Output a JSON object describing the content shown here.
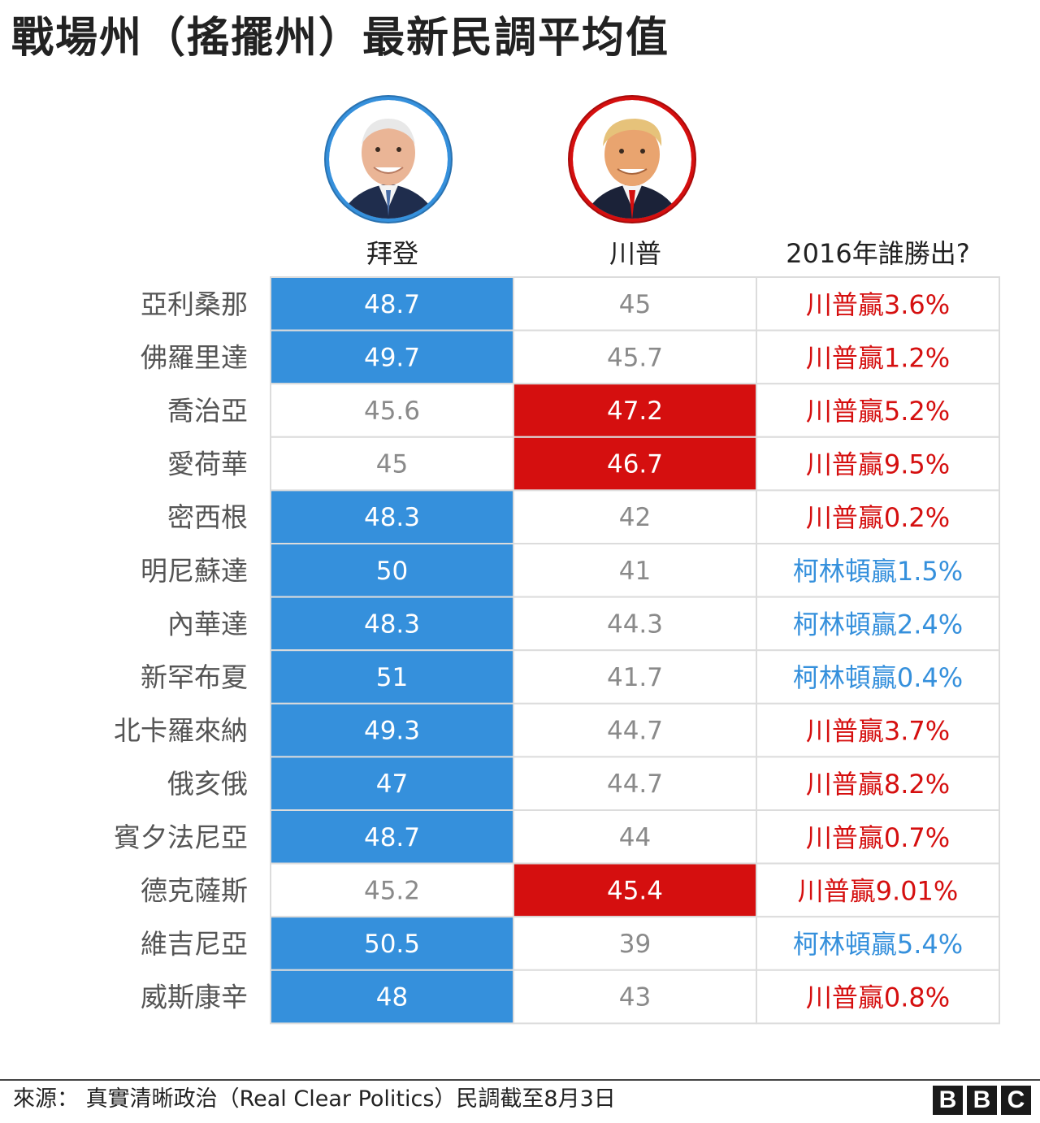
{
  "title": "戰場州（搖擺州）最新民調平均值",
  "columns": {
    "biden": "拜登",
    "trump": "川普",
    "won_2016": "2016年誰勝出?"
  },
  "colors": {
    "biden_blue": "#3590dc",
    "trump_red": "#d50f0f",
    "loser_text": "#8a8a8a",
    "grid": "#dcdcdc"
  },
  "chart_data": {
    "type": "table",
    "title": "戰場州（搖擺州）最新民調平均值",
    "headers": [
      "拜登",
      "川普",
      "2016年誰勝出?"
    ],
    "rows": [
      {
        "state": "亞利桑那",
        "biden": "48.7",
        "trump": "45",
        "lead": "biden",
        "result": "川普贏3.6%",
        "result_winner": "trump"
      },
      {
        "state": "佛羅里達",
        "biden": "49.7",
        "trump": "45.7",
        "lead": "biden",
        "result": "川普贏1.2%",
        "result_winner": "trump"
      },
      {
        "state": "喬治亞",
        "biden": "45.6",
        "trump": "47.2",
        "lead": "trump",
        "result": "川普贏5.2%",
        "result_winner": "trump"
      },
      {
        "state": "愛荷華",
        "biden": "45",
        "trump": "46.7",
        "lead": "trump",
        "result": "川普贏9.5%",
        "result_winner": "trump"
      },
      {
        "state": "密西根",
        "biden": "48.3",
        "trump": "42",
        "lead": "biden",
        "result": "川普贏0.2%",
        "result_winner": "trump"
      },
      {
        "state": "明尼蘇達",
        "biden": "50",
        "trump": "41",
        "lead": "biden",
        "result": "柯林頓贏1.5%",
        "result_winner": "clinton"
      },
      {
        "state": "內華達",
        "biden": "48.3",
        "trump": "44.3",
        "lead": "biden",
        "result": "柯林頓贏2.4%",
        "result_winner": "clinton"
      },
      {
        "state": "新罕布夏",
        "biden": "51",
        "trump": "41.7",
        "lead": "biden",
        "result": "柯林頓贏0.4%",
        "result_winner": "clinton"
      },
      {
        "state": "北卡羅來納",
        "biden": "49.3",
        "trump": "44.7",
        "lead": "biden",
        "result": "川普贏3.7%",
        "result_winner": "trump"
      },
      {
        "state": "俄亥俄",
        "biden": "47",
        "trump": "44.7",
        "lead": "biden",
        "result": "川普贏8.2%",
        "result_winner": "trump"
      },
      {
        "state": "賓夕法尼亞",
        "biden": "48.7",
        "trump": "44",
        "lead": "biden",
        "result": "川普贏0.7%",
        "result_winner": "trump"
      },
      {
        "state": "德克薩斯",
        "biden": "45.2",
        "trump": "45.4",
        "lead": "trump",
        "result": "川普贏9.01%",
        "result_winner": "trump"
      },
      {
        "state": "維吉尼亞",
        "biden": "50.5",
        "trump": "39",
        "lead": "biden",
        "result": "柯林頓贏5.4%",
        "result_winner": "clinton"
      },
      {
        "state": "威斯康辛",
        "biden": "48",
        "trump": "43",
        "lead": "biden",
        "result": "川普贏0.8%",
        "result_winner": "trump"
      }
    ]
  },
  "footer": {
    "source": "來源： 真實清晰政治（Real Clear Politics）民調截至8月3日",
    "logo": [
      "B",
      "B",
      "C"
    ]
  }
}
